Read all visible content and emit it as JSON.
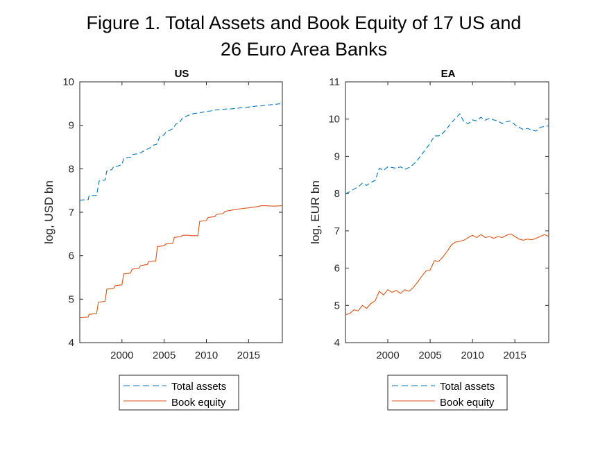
{
  "figure": {
    "title_lines": [
      "Figure 1. Total Assets and Book Equity of 17 US and",
      "26 Euro Area Banks"
    ]
  },
  "colors": {
    "assets": "#0072BD",
    "equity": "#D95319",
    "axis": "#262626"
  },
  "chart_data": [
    {
      "type": "line",
      "title": "US",
      "xlabel": "",
      "ylabel": "log, USD bn",
      "xlim": [
        1995,
        2019
      ],
      "ylim": [
        4,
        10
      ],
      "xticks": [
        2000,
        2005,
        2010,
        2015
      ],
      "yticks": [
        4,
        5,
        6,
        7,
        8,
        9,
        10
      ],
      "legend": {
        "position": "below"
      },
      "series": [
        {
          "name": "Total assets",
          "style": "dashed",
          "x": [
            1995,
            1996,
            1996.1,
            1997,
            1997.3,
            1998,
            1998.2,
            1998.8,
            1999,
            1999.5,
            2000,
            2000.2,
            2001,
            2001.3,
            2002,
            2002.5,
            2003,
            2003.3,
            2003.8,
            2004.1,
            2004.5,
            2005,
            2005.2,
            2005.6,
            2006,
            2006.4,
            2006.8,
            2007.1,
            2007.5,
            2008,
            2008.5,
            2009,
            2009.5,
            2010,
            2010.5,
            2011,
            2012,
            2013,
            2014,
            2015,
            2015.8,
            2016.5,
            2017,
            2018,
            2019
          ],
          "y": [
            7.28,
            7.29,
            7.38,
            7.39,
            7.72,
            7.74,
            7.95,
            7.98,
            8.05,
            8.06,
            8.1,
            8.24,
            8.26,
            8.33,
            8.35,
            8.4,
            8.45,
            8.48,
            8.55,
            8.56,
            8.75,
            8.78,
            8.85,
            8.88,
            8.92,
            9.03,
            9.06,
            9.15,
            9.2,
            9.24,
            9.27,
            9.28,
            9.3,
            9.32,
            9.33,
            9.35,
            9.37,
            9.38,
            9.4,
            9.42,
            9.44,
            9.45,
            9.46,
            9.48,
            9.5
          ]
        },
        {
          "name": "Book equity",
          "style": "solid",
          "x": [
            1995,
            1996,
            1996.1,
            1997,
            1997.2,
            1998,
            1998.2,
            1999,
            1999.2,
            2000,
            2000.2,
            2001,
            2001.2,
            2002,
            2002.2,
            2003,
            2003.2,
            2004,
            2004.2,
            2005,
            2005.2,
            2006,
            2006.2,
            2007,
            2007.2,
            2008,
            2008.2,
            2009,
            2009.2,
            2010,
            2010.2,
            2011,
            2011.2,
            2012,
            2012.2,
            2013,
            2014,
            2015,
            2016,
            2016.5,
            2017,
            2018,
            2019
          ],
          "y": [
            4.58,
            4.59,
            4.65,
            4.67,
            4.93,
            4.95,
            5.23,
            5.25,
            5.31,
            5.33,
            5.58,
            5.6,
            5.69,
            5.71,
            5.77,
            5.8,
            5.87,
            5.88,
            6.21,
            6.23,
            6.27,
            6.28,
            6.42,
            6.44,
            6.47,
            6.47,
            6.46,
            6.46,
            6.79,
            6.81,
            6.88,
            6.9,
            6.95,
            6.97,
            7.02,
            7.05,
            7.08,
            7.1,
            7.13,
            7.15,
            7.15,
            7.14,
            7.15
          ]
        }
      ]
    },
    {
      "type": "line",
      "title": "EA",
      "xlabel": "",
      "ylabel": "log, EUR bn",
      "xlim": [
        1995,
        2019
      ],
      "ylim": [
        4,
        11
      ],
      "xticks": [
        2000,
        2005,
        2010,
        2015
      ],
      "yticks": [
        4,
        5,
        6,
        7,
        8,
        9,
        10,
        11
      ],
      "legend": {
        "position": "below"
      },
      "series": [
        {
          "name": "Total assets",
          "style": "dashed",
          "x": [
            1995,
            1995.5,
            1996,
            1996.5,
            1997,
            1997.5,
            1998,
            1998.5,
            1999,
            1999.5,
            2000,
            2000.5,
            2001,
            2001.5,
            2002,
            2002.5,
            2003,
            2003.5,
            2004,
            2004.5,
            2005,
            2005.5,
            2006,
            2006.5,
            2007,
            2007.5,
            2008,
            2008.5,
            2009,
            2009.5,
            2010,
            2010.5,
            2011,
            2011.5,
            2012,
            2012.5,
            2013,
            2013.5,
            2014,
            2014.5,
            2015,
            2015.5,
            2016,
            2016.5,
            2017,
            2017.5,
            2018,
            2018.5,
            2019
          ],
          "y": [
            8.0,
            8.05,
            8.12,
            8.18,
            8.28,
            8.22,
            8.3,
            8.35,
            8.68,
            8.62,
            8.72,
            8.7,
            8.68,
            8.72,
            8.65,
            8.7,
            8.78,
            8.9,
            9.05,
            9.2,
            9.35,
            9.55,
            9.55,
            9.62,
            9.75,
            9.9,
            10.02,
            10.14,
            9.92,
            9.88,
            9.98,
            9.95,
            10.05,
            9.97,
            10.02,
            9.98,
            9.95,
            9.88,
            9.93,
            9.95,
            9.85,
            9.78,
            9.72,
            9.75,
            9.7,
            9.68,
            9.78,
            9.8,
            9.82
          ]
        },
        {
          "name": "Book equity",
          "style": "solid",
          "x": [
            1995,
            1995.5,
            1996,
            1996.5,
            1997,
            1997.5,
            1998,
            1998.5,
            1999,
            1999.5,
            2000,
            2000.5,
            2001,
            2001.5,
            2002,
            2002.5,
            2003,
            2003.5,
            2004,
            2004.5,
            2005,
            2005.5,
            2006,
            2006.5,
            2007,
            2007.5,
            2008,
            2008.5,
            2009,
            2009.5,
            2010,
            2010.5,
            2011,
            2011.5,
            2012,
            2012.5,
            2013,
            2013.5,
            2014,
            2014.5,
            2015,
            2015.5,
            2016,
            2016.5,
            2017,
            2017.5,
            2018,
            2018.5,
            2019
          ],
          "y": [
            4.75,
            4.78,
            4.88,
            4.85,
            5.0,
            4.92,
            5.05,
            5.12,
            5.38,
            5.28,
            5.42,
            5.35,
            5.4,
            5.32,
            5.42,
            5.38,
            5.48,
            5.62,
            5.78,
            5.92,
            5.95,
            6.2,
            6.18,
            6.3,
            6.45,
            6.62,
            6.7,
            6.72,
            6.75,
            6.82,
            6.88,
            6.82,
            6.9,
            6.82,
            6.85,
            6.8,
            6.85,
            6.82,
            6.88,
            6.92,
            6.85,
            6.78,
            6.75,
            6.78,
            6.76,
            6.8,
            6.85,
            6.9,
            6.85
          ]
        }
      ]
    }
  ]
}
